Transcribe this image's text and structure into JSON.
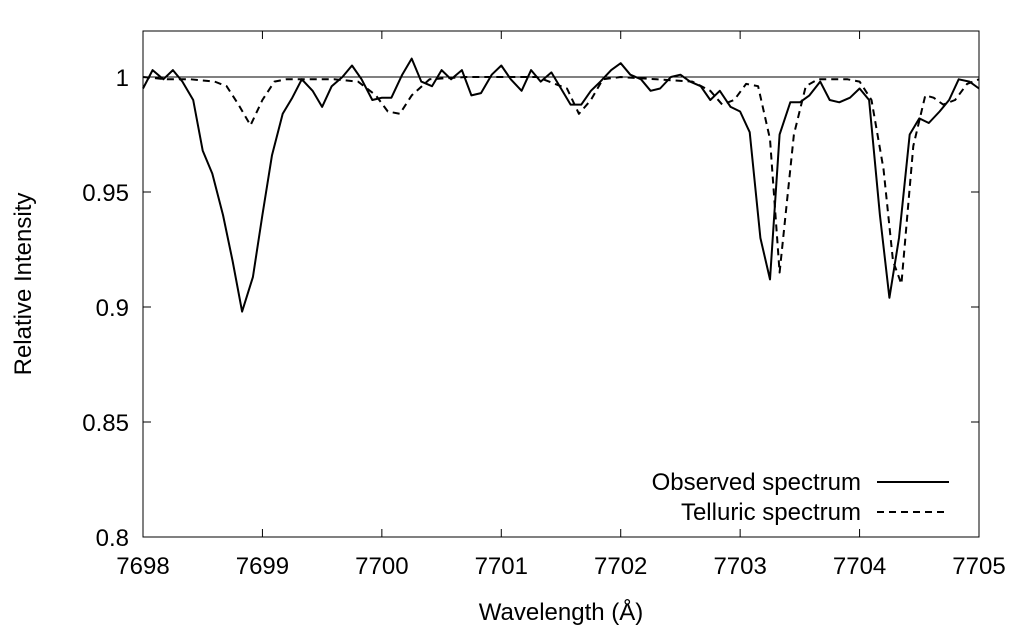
{
  "chart_data": {
    "type": "line",
    "title": "",
    "xlabel": "Wavelength (Å)",
    "ylabel": "Relative Intensity",
    "xlim": [
      7698,
      7705
    ],
    "ylim": [
      0.8,
      1.02
    ],
    "xticks": [
      7698,
      7699,
      7700,
      7701,
      7702,
      7703,
      7704,
      7705
    ],
    "xtick_labels": [
      "7698",
      "7699",
      "7700",
      "7701",
      "7702",
      "7703",
      "7704",
      "7705"
    ],
    "yticks": [
      0.8,
      0.85,
      0.9,
      0.95,
      1.0
    ],
    "ytick_labels": [
      "0.8",
      "0.85",
      "0.9",
      "0.95",
      "1"
    ],
    "reference_line": 1.0,
    "grid": false,
    "legend_position": "bottom-right",
    "series": [
      {
        "name": "Observed spectrum",
        "style": "solid",
        "color": "#000000",
        "x": [
          7698.0,
          7698.08,
          7698.17,
          7698.25,
          7698.33,
          7698.42,
          7698.5,
          7698.58,
          7698.67,
          7698.75,
          7698.83,
          7698.92,
          7699.0,
          7699.08,
          7699.17,
          7699.25,
          7699.33,
          7699.42,
          7699.5,
          7699.58,
          7699.67,
          7699.75,
          7699.83,
          7699.92,
          7700.0,
          7700.08,
          7700.17,
          7700.25,
          7700.33,
          7700.42,
          7700.5,
          7700.58,
          7700.67,
          7700.75,
          7700.83,
          7700.92,
          7701.0,
          7701.08,
          7701.17,
          7701.25,
          7701.33,
          7701.42,
          7701.5,
          7701.58,
          7701.67,
          7701.75,
          7701.83,
          7701.92,
          7702.0,
          7702.08,
          7702.17,
          7702.25,
          7702.33,
          7702.42,
          7702.5,
          7702.58,
          7702.67,
          7702.75,
          7702.83,
          7702.92,
          7703.0,
          7703.08,
          7703.17,
          7703.25,
          7703.33,
          7703.42,
          7703.5,
          7703.58,
          7703.67,
          7703.75,
          7703.83,
          7703.92,
          7704.0,
          7704.08,
          7704.17,
          7704.25,
          7704.33,
          7704.42,
          7704.5,
          7704.58,
          7704.67,
          7704.75,
          7704.83,
          7704.92,
          7705.0
        ],
        "y": [
          0.995,
          1.003,
          0.999,
          1.003,
          0.998,
          0.99,
          0.968,
          0.958,
          0.94,
          0.92,
          0.898,
          0.913,
          0.94,
          0.966,
          0.984,
          0.991,
          0.999,
          0.994,
          0.987,
          0.996,
          1.0,
          1.005,
          0.999,
          0.99,
          0.991,
          0.991,
          1.001,
          1.008,
          0.998,
          0.996,
          1.003,
          0.999,
          1.003,
          0.992,
          0.993,
          1.001,
          1.005,
          0.999,
          0.994,
          1.003,
          0.998,
          1.002,
          0.995,
          0.988,
          0.988,
          0.994,
          0.998,
          1.003,
          1.006,
          1.001,
          0.999,
          0.994,
          0.995,
          1.0,
          1.001,
          0.998,
          0.996,
          0.99,
          0.994,
          0.987,
          0.985,
          0.976,
          0.93,
          0.912,
          0.975,
          0.989,
          0.989,
          0.992,
          0.998,
          0.99,
          0.989,
          0.991,
          0.995,
          0.99,
          0.94,
          0.904,
          0.93,
          0.975,
          0.982,
          0.98,
          0.985,
          0.99,
          0.999,
          0.998,
          0.995
        ]
      },
      {
        "name": "Telluric spectrum",
        "style": "dashed",
        "color": "#000000",
        "x": [
          7698.0,
          7698.2,
          7698.4,
          7698.6,
          7698.7,
          7698.8,
          7698.9,
          7699.0,
          7699.1,
          7699.2,
          7699.4,
          7699.6,
          7699.8,
          7699.95,
          7700.05,
          7700.15,
          7700.25,
          7700.4,
          7700.7,
          7701.0,
          7701.3,
          7701.55,
          7701.65,
          7701.75,
          7701.85,
          7702.0,
          7702.3,
          7702.6,
          7702.75,
          7702.85,
          7702.95,
          7703.05,
          7703.15,
          7703.25,
          7703.33,
          7703.45,
          7703.55,
          7703.65,
          7703.75,
          7703.9,
          7704.0,
          7704.1,
          7704.2,
          7704.28,
          7704.35,
          7704.45,
          7704.55,
          7704.62,
          7704.7,
          7704.8,
          7704.9,
          7705.0
        ],
        "y": [
          1.0,
          0.999,
          0.999,
          0.998,
          0.996,
          0.988,
          0.979,
          0.99,
          0.998,
          0.999,
          0.999,
          0.999,
          0.998,
          0.992,
          0.985,
          0.984,
          0.992,
          0.999,
          1.0,
          1.0,
          1.0,
          0.995,
          0.984,
          0.99,
          0.999,
          1.0,
          0.999,
          0.998,
          0.994,
          0.988,
          0.99,
          0.997,
          0.996,
          0.973,
          0.915,
          0.975,
          0.996,
          0.999,
          0.999,
          0.999,
          0.998,
          0.99,
          0.96,
          0.92,
          0.91,
          0.97,
          0.992,
          0.991,
          0.988,
          0.99,
          0.997,
          0.999
        ]
      }
    ]
  }
}
